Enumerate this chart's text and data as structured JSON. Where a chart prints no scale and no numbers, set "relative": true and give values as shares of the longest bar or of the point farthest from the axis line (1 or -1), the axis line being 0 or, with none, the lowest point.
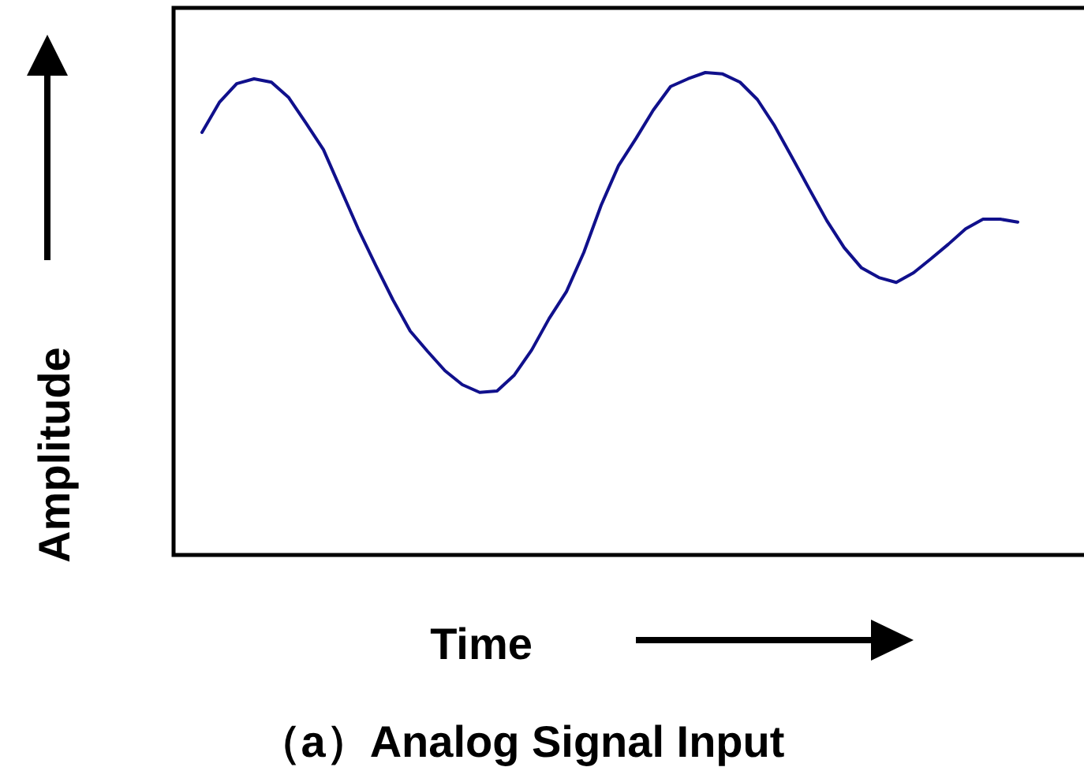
{
  "chart_data": {
    "type": "line",
    "title": "（a）Analog Signal Input",
    "xlabel": "Time",
    "ylabel": "Amplitude",
    "relative": true,
    "categories": [
      null,
      null,
      null,
      null,
      null,
      null,
      null,
      null,
      null,
      null,
      null,
      null,
      null,
      null,
      null,
      null,
      null,
      null,
      null,
      null,
      null,
      null,
      null,
      null,
      null,
      null,
      null,
      null,
      null,
      null,
      null,
      null,
      null,
      null,
      null,
      null,
      null,
      null,
      null,
      null,
      null,
      null,
      null,
      null,
      null,
      null,
      null,
      null
    ],
    "series": [
      {
        "color": "#10108c",
        "values": [
          0.876,
          0.938,
          0.977,
          0.987,
          0.98,
          0.948,
          0.895,
          0.84,
          0.758,
          0.676,
          0.601,
          0.529,
          0.464,
          0.422,
          0.382,
          0.353,
          0.337,
          0.34,
          0.373,
          0.425,
          0.49,
          0.546,
          0.627,
          0.725,
          0.807,
          0.863,
          0.922,
          0.971,
          0.987,
          1,
          0.997,
          0.98,
          0.944,
          0.889,
          0.824,
          0.758,
          0.693,
          0.637,
          0.595,
          0.575,
          0.565,
          0.585,
          0.614,
          0.644,
          0.676,
          0.696,
          0.696,
          0.69
        ]
      }
    ]
  }
}
